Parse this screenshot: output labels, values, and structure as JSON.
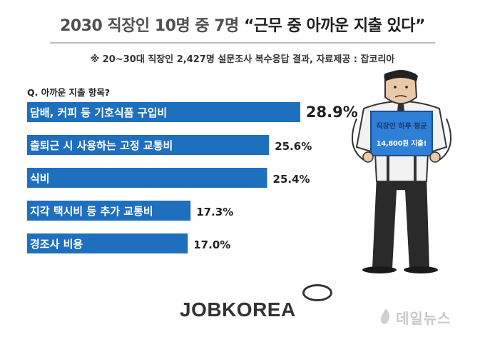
{
  "header": {
    "title_prefix": "2030 직장인 10명 중 7명 ",
    "title_quote": "“근무 중 아까운 지출 있다”",
    "subtitle": "※ 20~30대 직장인 2,427명 설문조사 복수응답 결과, 자료제공 : 잡코리아",
    "question": "Q. 아까운 지출 항목?"
  },
  "colors": {
    "bar": "#1f6fbf",
    "sign": "#2e7fd6",
    "text": "#222222"
  },
  "chart_data": {
    "type": "bar",
    "orientation": "horizontal",
    "categories": [
      "담배, 커피 등 기호식품 구입비",
      "출퇴근 시 사용하는 고정 교통비",
      "식비",
      "지각 택시비 등 추가 교통비",
      "경조사 비용"
    ],
    "values": [
      28.9,
      25.6,
      25.4,
      17.3,
      17.0
    ],
    "value_labels": [
      "28.9%",
      "25.6%",
      "25.4%",
      "17.3%",
      "17.0%"
    ],
    "unit": "%",
    "xlim": [
      0,
      32
    ],
    "grid": false,
    "legend": "none"
  },
  "illustration": {
    "sign_line1": "직장인 하루 평균",
    "sign_line2": "14,800원 지출!"
  },
  "brand": {
    "logo": "JOBKOREA",
    "watermark": "데일뉴스"
  }
}
